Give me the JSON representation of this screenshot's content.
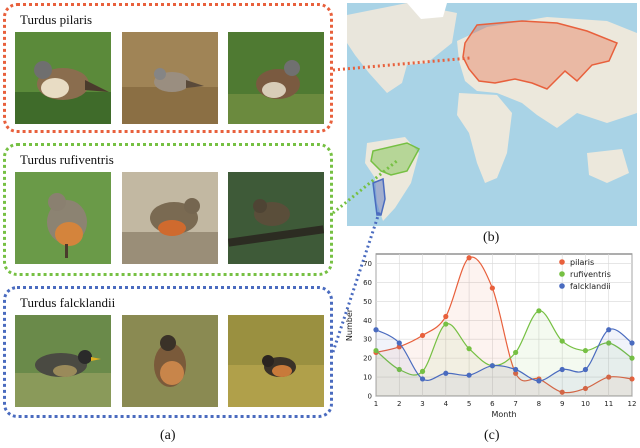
{
  "panel_a": {
    "caption": "(a)",
    "species": [
      {
        "name": "Turdus pilaris",
        "color": "#e8603c"
      },
      {
        "name": "Turdus rufiventris",
        "color": "#76c043"
      },
      {
        "name": "Turdus falcklandii",
        "color": "#4a6bbf"
      }
    ]
  },
  "panel_b": {
    "caption": "(b)"
  },
  "panel_c": {
    "caption": "(c)"
  },
  "chart_data": {
    "type": "line",
    "xlabel": "Month",
    "ylabel": "Number",
    "x": [
      1,
      2,
      3,
      4,
      5,
      6,
      7,
      8,
      9,
      10,
      11,
      12
    ],
    "xlim": [
      1,
      12
    ],
    "ylim": [
      0,
      75
    ],
    "yticks": [
      0,
      10,
      20,
      30,
      40,
      50,
      60,
      70
    ],
    "grid": true,
    "legend": "top-right",
    "series": [
      {
        "name": "pilaris",
        "color": "#e8603c",
        "values": [
          23,
          26,
          32,
          42,
          73,
          57,
          12,
          9,
          2,
          4,
          10,
          9
        ]
      },
      {
        "name": "rufiventris",
        "color": "#76c043",
        "values": [
          24,
          14,
          13,
          38,
          25,
          16,
          23,
          45,
          29,
          24,
          28,
          20
        ]
      },
      {
        "name": "falcklandii",
        "color": "#4a6bbf",
        "values": [
          35,
          28,
          9,
          12,
          11,
          16,
          14,
          8,
          14,
          14,
          35,
          28
        ]
      }
    ]
  }
}
